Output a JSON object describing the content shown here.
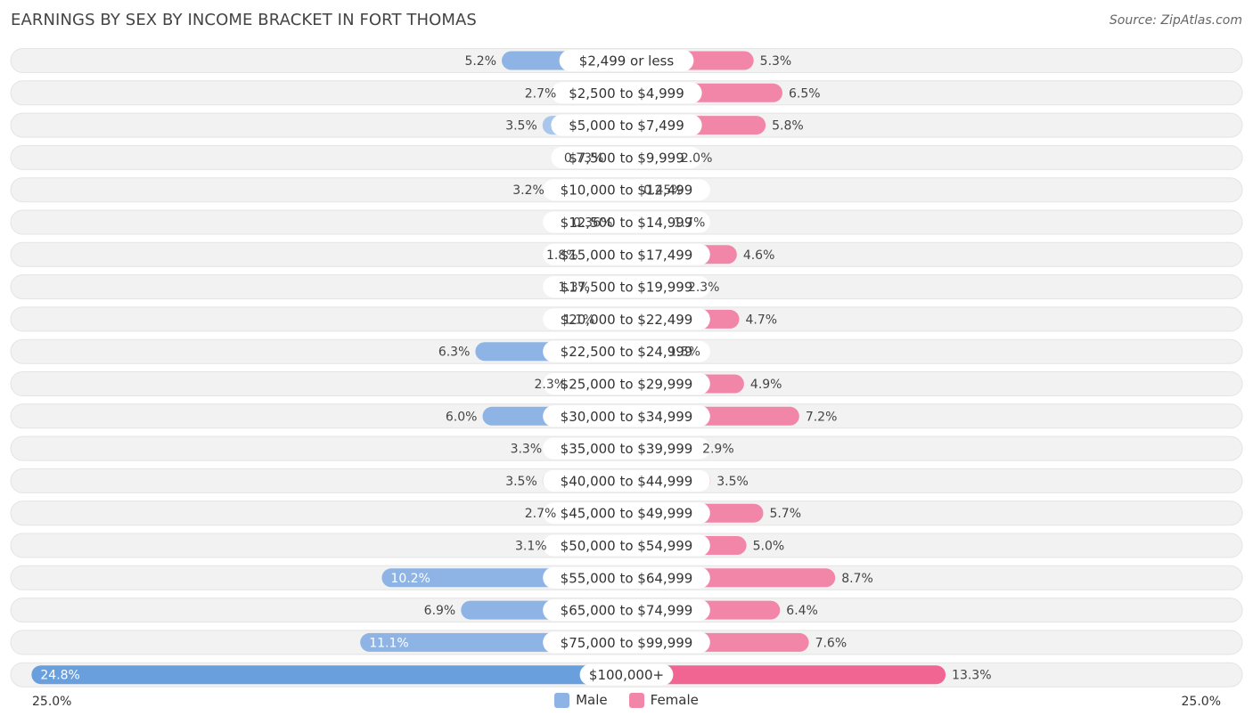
{
  "title": "EARNINGS BY SEX BY INCOME BRACKET IN FORT THOMAS",
  "source": "Source: ZipAtlas.com",
  "colors": {
    "male": "#8db4e4",
    "male_light": "#a9c7ec",
    "male_strong": "#6a9fde",
    "female": "#f286a8",
    "female_light": "#f6a9c0",
    "female_strong": "#f06592",
    "row_bg": "#f2f2f2"
  },
  "legend": {
    "male": "Male",
    "female": "Female"
  },
  "axis": {
    "left_label": "25.0%",
    "right_label": "25.0%"
  },
  "chart_data": {
    "type": "bar",
    "orientation": "horizontal-diverging",
    "title": "EARNINGS BY SEX BY INCOME BRACKET IN FORT THOMAS",
    "xlim": [
      -25.0,
      25.0
    ],
    "categories": [
      "$2,499 or less",
      "$2,500 to $4,999",
      "$5,000 to $7,499",
      "$7,500 to $9,999",
      "$10,000 to $12,499",
      "$12,500 to $14,999",
      "$15,000 to $17,499",
      "$17,500 to $19,999",
      "$20,000 to $22,499",
      "$22,500 to $24,999",
      "$25,000 to $29,999",
      "$30,000 to $34,999",
      "$35,000 to $39,999",
      "$40,000 to $44,999",
      "$45,000 to $49,999",
      "$50,000 to $54,999",
      "$55,000 to $64,999",
      "$65,000 to $74,999",
      "$75,000 to $99,999",
      "$100,000+"
    ],
    "series": [
      {
        "name": "Male",
        "values": [
          5.2,
          2.7,
          3.5,
          0.73,
          3.2,
          0.36,
          1.8,
          1.3,
          1.1,
          6.3,
          2.3,
          6.0,
          3.3,
          3.5,
          2.7,
          3.1,
          10.2,
          6.9,
          11.1,
          24.8
        ],
        "labels": [
          "5.2%",
          "2.7%",
          "3.5%",
          "0.73%",
          "3.2%",
          "0.36%",
          "1.8%",
          "1.3%",
          "1.1%",
          "6.3%",
          "2.3%",
          "6.0%",
          "3.3%",
          "3.5%",
          "2.7%",
          "3.1%",
          "10.2%",
          "6.9%",
          "11.1%",
          "24.8%"
        ]
      },
      {
        "name": "Female",
        "values": [
          5.3,
          6.5,
          5.8,
          2.0,
          0.45,
          1.7,
          4.6,
          2.3,
          4.7,
          1.5,
          4.9,
          7.2,
          2.9,
          3.5,
          5.7,
          5.0,
          8.7,
          6.4,
          7.6,
          13.3
        ],
        "labels": [
          "5.3%",
          "6.5%",
          "5.8%",
          "2.0%",
          "0.45%",
          "1.7%",
          "4.6%",
          "2.3%",
          "4.7%",
          "1.5%",
          "4.9%",
          "7.2%",
          "2.9%",
          "3.5%",
          "5.7%",
          "5.0%",
          "8.7%",
          "6.4%",
          "7.6%",
          "13.3%"
        ]
      }
    ]
  }
}
